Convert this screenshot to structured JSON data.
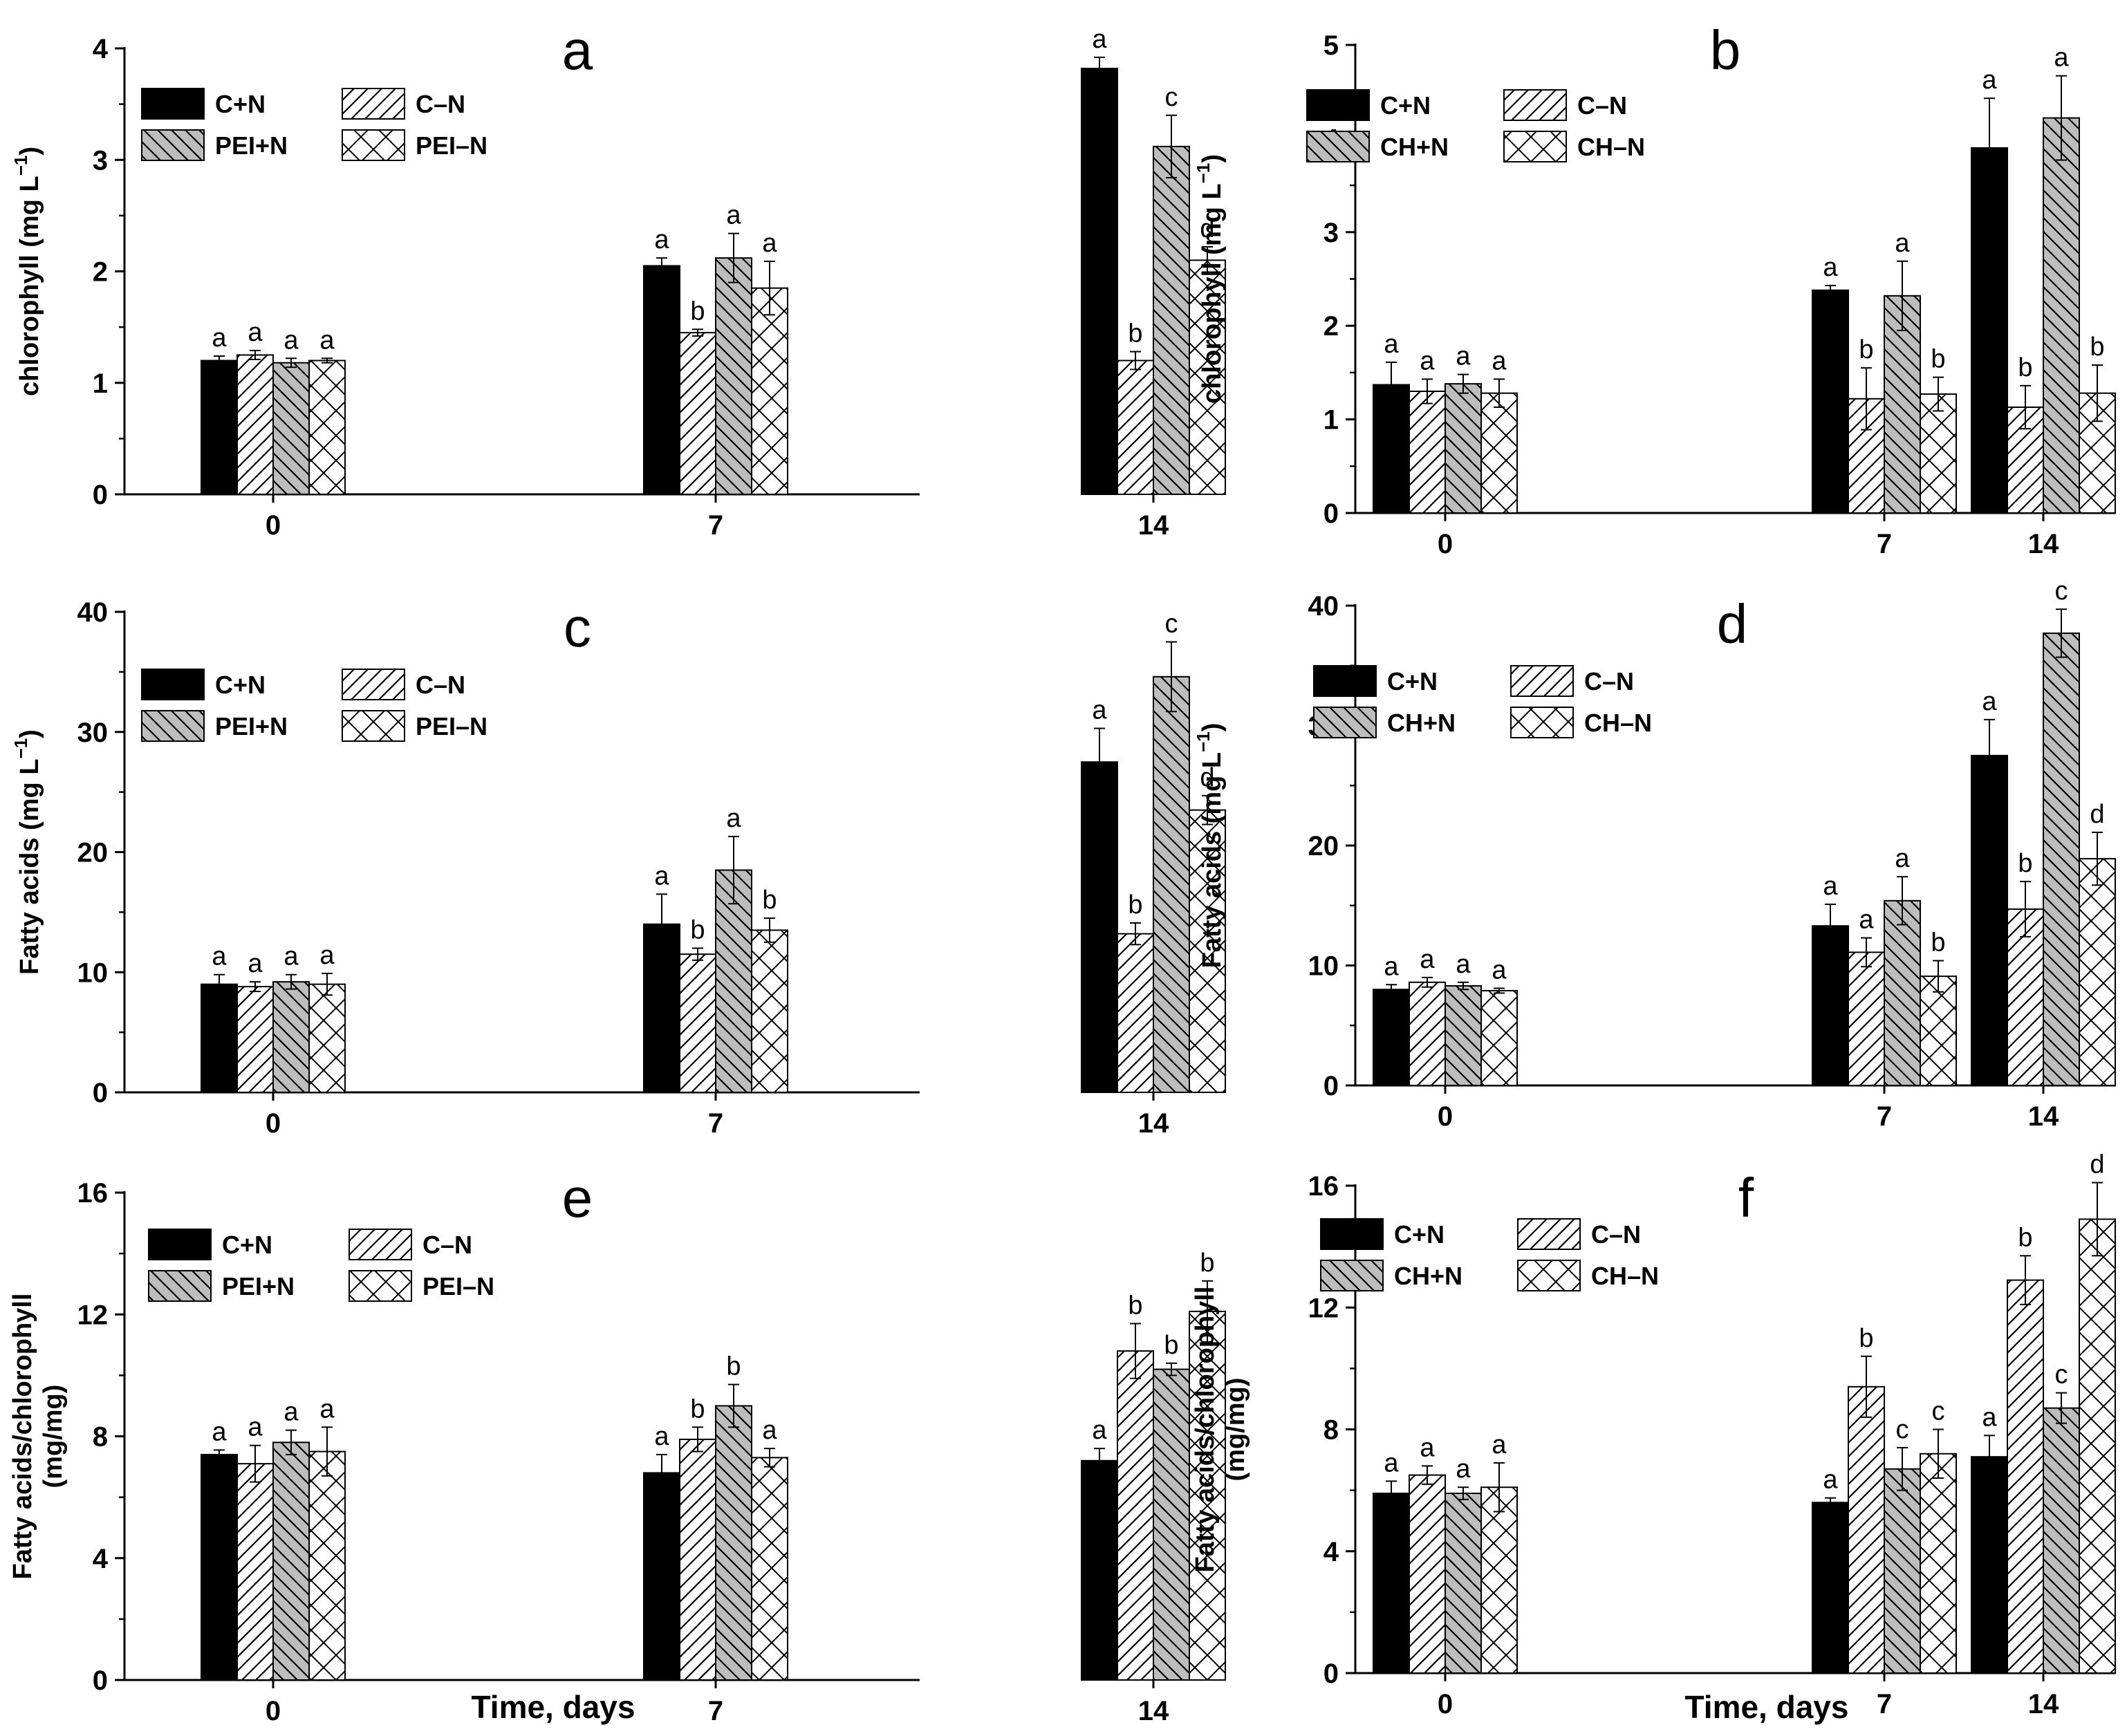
{
  "figure": {
    "x_title": "Time, days"
  },
  "chart_data": [
    {
      "id": "a",
      "type": "bar",
      "title": "a",
      "ylabel_main": "chlorophyll (mg L",
      "ylabel_sup": "−1",
      "ylabel_close": ")",
      "ylabel2": "",
      "xlabel": "",
      "categories": [
        "0",
        "7",
        "14"
      ],
      "ylim": [
        0,
        4
      ],
      "yticks": [
        "0",
        "1",
        "2",
        "3",
        "4"
      ],
      "legend": "top-left",
      "series": [
        {
          "name": "C+N",
          "fill": "solid",
          "values": [
            1.2,
            2.05,
            3.82
          ],
          "errors": [
            0.04,
            0.07,
            0.1
          ],
          "letters": [
            "a",
            "a",
            "a"
          ]
        },
        {
          "name": "C–N",
          "fill": "diag",
          "values": [
            1.25,
            1.45,
            1.2
          ],
          "errors": [
            0.04,
            0.03,
            0.08
          ],
          "letters": [
            "a",
            "b",
            "b"
          ]
        },
        {
          "name": "PEI+N",
          "fill": "grey-diag",
          "values": [
            1.18,
            2.12,
            3.12
          ],
          "errors": [
            0.04,
            0.22,
            0.28
          ],
          "letters": [
            "a",
            "a",
            "c"
          ]
        },
        {
          "name": "PEI–N",
          "fill": "cross",
          "values": [
            1.2,
            1.85,
            2.1
          ],
          "errors": [
            0.02,
            0.24,
            0.12
          ],
          "letters": [
            "a",
            "a",
            "d"
          ]
        }
      ]
    },
    {
      "id": "b",
      "type": "bar",
      "title": "b",
      "ylabel_main": "chlorophyll (mg L",
      "ylabel_sup": "−1",
      "ylabel_close": ")",
      "ylabel2": "",
      "xlabel": "",
      "categories": [
        "0",
        "7",
        "14"
      ],
      "ylim": [
        0,
        5
      ],
      "yticks": [
        "0",
        "1",
        "2",
        "3",
        "4",
        "5"
      ],
      "legend": "top-left",
      "series": [
        {
          "name": "C+N",
          "fill": "solid",
          "values": [
            1.37,
            2.38,
            3.9
          ],
          "errors": [
            0.24,
            0.05,
            0.53
          ],
          "letters": [
            "a",
            "a",
            "a"
          ]
        },
        {
          "name": "C–N",
          "fill": "diag",
          "values": [
            1.3,
            1.22,
            1.13
          ],
          "errors": [
            0.13,
            0.33,
            0.23
          ],
          "letters": [
            "a",
            "b",
            "b"
          ]
        },
        {
          "name": "CH+N",
          "fill": "grey-diag",
          "values": [
            1.38,
            2.32,
            4.22
          ],
          "errors": [
            0.1,
            0.37,
            0.45
          ],
          "letters": [
            "a",
            "a",
            "a"
          ]
        },
        {
          "name": "CH–N",
          "fill": "cross",
          "values": [
            1.28,
            1.27,
            1.28
          ],
          "errors": [
            0.15,
            0.18,
            0.3
          ],
          "letters": [
            "a",
            "b",
            "b"
          ]
        }
      ]
    },
    {
      "id": "c",
      "type": "bar",
      "title": "c",
      "ylabel_main": "Fatty acids (mg L",
      "ylabel_sup": "−1",
      "ylabel_close": ")",
      "ylabel2": "",
      "xlabel": "",
      "categories": [
        "0",
        "7",
        "14"
      ],
      "ylim": [
        0,
        40
      ],
      "yticks": [
        "0",
        "10",
        "20",
        "30",
        "40"
      ],
      "legend": "top-left",
      "series": [
        {
          "name": "C+N",
          "fill": "solid",
          "values": [
            9.0,
            14.0,
            27.5
          ],
          "errors": [
            0.8,
            2.5,
            2.8
          ],
          "letters": [
            "a",
            "a",
            "a"
          ]
        },
        {
          "name": "C–N",
          "fill": "diag",
          "values": [
            8.8,
            11.5,
            13.2
          ],
          "errors": [
            0.4,
            0.5,
            0.9
          ],
          "letters": [
            "a",
            "b",
            "b"
          ]
        },
        {
          "name": "PEI+N",
          "fill": "grey-diag",
          "values": [
            9.2,
            18.5,
            34.6
          ],
          "errors": [
            0.6,
            2.8,
            2.9
          ],
          "letters": [
            "a",
            "a",
            "c"
          ]
        },
        {
          "name": "PEI–N",
          "fill": "cross",
          "values": [
            9.0,
            13.5,
            23.5
          ],
          "errors": [
            0.9,
            1.0,
            1.2
          ],
          "letters": [
            "a",
            "b",
            "d"
          ]
        }
      ]
    },
    {
      "id": "d",
      "type": "bar",
      "title": "d",
      "ylabel_main": "Fatty acids (mg L",
      "ylabel_sup": "−1",
      "ylabel_close": ")",
      "ylabel2": "",
      "xlabel": "",
      "categories": [
        "0",
        "7",
        "14"
      ],
      "ylim": [
        0,
        40
      ],
      "yticks": [
        "0",
        "10",
        "20",
        "30",
        "40"
      ],
      "legend": "top-left",
      "series": [
        {
          "name": "C+N",
          "fill": "solid",
          "values": [
            8.0,
            13.3,
            27.5
          ],
          "errors": [
            0.4,
            1.8,
            3.0
          ],
          "letters": [
            "a",
            "a",
            "a"
          ]
        },
        {
          "name": "C–N",
          "fill": "diag",
          "values": [
            8.6,
            11.1,
            14.7
          ],
          "errors": [
            0.4,
            1.2,
            2.3
          ],
          "letters": [
            "a",
            "a",
            "b"
          ]
        },
        {
          "name": "CH+N",
          "fill": "grey-diag",
          "values": [
            8.3,
            15.4,
            37.7
          ],
          "errors": [
            0.3,
            2.0,
            2.0
          ],
          "letters": [
            "a",
            "a",
            "c"
          ]
        },
        {
          "name": "CH–N",
          "fill": "cross",
          "values": [
            7.9,
            9.1,
            18.9
          ],
          "errors": [
            0.2,
            1.3,
            2.2
          ],
          "letters": [
            "a",
            "b",
            "d"
          ]
        }
      ]
    },
    {
      "id": "e",
      "type": "bar",
      "title": "e",
      "ylabel_main": "Fatty acids/chlorophyll",
      "ylabel_sup": "",
      "ylabel_close": "",
      "ylabel2": "(mg/mg)",
      "xlabel": "Time, days",
      "categories": [
        "0",
        "7",
        "14"
      ],
      "ylim": [
        0,
        16
      ],
      "yticks": [
        "0",
        "4",
        "8",
        "12",
        "16"
      ],
      "legend": "top-left",
      "series": [
        {
          "name": "C+N",
          "fill": "solid",
          "values": [
            7.4,
            6.8,
            7.2
          ],
          "errors": [
            0.15,
            0.6,
            0.4
          ],
          "letters": [
            "a",
            "a",
            "a"
          ]
        },
        {
          "name": "C–N",
          "fill": "diag",
          "values": [
            7.1,
            7.9,
            10.8
          ],
          "errors": [
            0.6,
            0.4,
            0.9
          ],
          "letters": [
            "a",
            "b",
            "b"
          ]
        },
        {
          "name": "PEI+N",
          "fill": "grey-diag",
          "values": [
            7.8,
            9.0,
            10.2
          ],
          "errors": [
            0.4,
            0.7,
            0.2
          ],
          "letters": [
            "a",
            "b",
            "b"
          ]
        },
        {
          "name": "PEI–N",
          "fill": "cross",
          "values": [
            7.5,
            7.3,
            12.1
          ],
          "errors": [
            0.8,
            0.3,
            1.0
          ],
          "letters": [
            "a",
            "a",
            "b"
          ]
        }
      ]
    },
    {
      "id": "f",
      "type": "bar",
      "title": "f",
      "ylabel_main": "Fatty acids/chlorophyll",
      "ylabel_sup": "",
      "ylabel_close": "",
      "ylabel2": "(mg/mg)",
      "xlabel": "Time, days",
      "categories": [
        "0",
        "7",
        "14"
      ],
      "ylim": [
        0,
        16
      ],
      "yticks": [
        "0",
        "4",
        "8",
        "12",
        "16"
      ],
      "legend": "top-left",
      "series": [
        {
          "name": "C+N",
          "fill": "solid",
          "values": [
            5.9,
            5.6,
            7.1
          ],
          "errors": [
            0.4,
            0.15,
            0.7
          ],
          "letters": [
            "a",
            "a",
            "a"
          ]
        },
        {
          "name": "C–N",
          "fill": "diag",
          "values": [
            6.5,
            9.4,
            12.9
          ],
          "errors": [
            0.3,
            1.0,
            0.8
          ],
          "letters": [
            "a",
            "b",
            "b"
          ]
        },
        {
          "name": "CH+N",
          "fill": "grey-diag",
          "values": [
            5.9,
            6.7,
            8.7
          ],
          "errors": [
            0.2,
            0.7,
            0.5
          ],
          "letters": [
            "a",
            "c",
            "c"
          ]
        },
        {
          "name": "CH–N",
          "fill": "cross",
          "values": [
            6.1,
            7.2,
            14.9
          ],
          "errors": [
            0.8,
            0.8,
            1.2
          ],
          "letters": [
            "a",
            "c",
            "d"
          ]
        }
      ]
    }
  ]
}
